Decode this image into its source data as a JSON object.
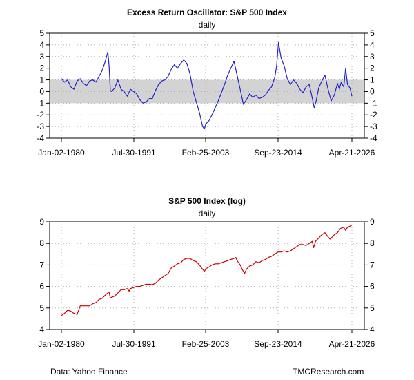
{
  "chart_data": [
    {
      "type": "line",
      "title": "Excess Return Oscillator: S&P 500 Index",
      "subtitle": "daily",
      "series_color": "#2222cc",
      "band": [
        -1,
        1
      ],
      "band_color": "#d3d3d3",
      "ylim": [
        -4,
        5
      ],
      "yticks": [
        "-4",
        "-3",
        "-2",
        "-1",
        "0",
        "1",
        "2",
        "3",
        "4",
        "5"
      ],
      "xtick_labels": [
        "Jan-02-1980",
        "Jul-30-1991",
        "Feb-25-2003",
        "Sep-23-2014",
        "Apr-21-2026"
      ],
      "xlim": [
        1980.0,
        2026.3
      ],
      "x": [
        1980.0,
        1980.5,
        1981.0,
        1981.5,
        1982.0,
        1982.5,
        1983.0,
        1983.5,
        1984.0,
        1984.5,
        1985.0,
        1985.5,
        1986.0,
        1986.5,
        1987.0,
        1987.4,
        1987.6,
        1987.8,
        1988.0,
        1988.5,
        1989.0,
        1989.5,
        1990.0,
        1990.5,
        1991.0,
        1991.5,
        1992.0,
        1992.5,
        1993.0,
        1993.5,
        1994.0,
        1994.5,
        1995.0,
        1995.5,
        1996.0,
        1996.5,
        1997.0,
        1997.5,
        1998.0,
        1998.5,
        1999.0,
        1999.5,
        2000.0,
        2000.5,
        2001.0,
        2001.5,
        2002.0,
        2002.5,
        2002.8,
        2003.0,
        2003.5,
        2004.0,
        2004.5,
        2005.0,
        2005.5,
        2006.0,
        2006.5,
        2007.0,
        2007.5,
        2008.0,
        2008.5,
        2009.0,
        2009.5,
        2010.0,
        2010.5,
        2011.0,
        2011.5,
        2012.0,
        2012.5,
        2013.0,
        2013.5,
        2014.0,
        2014.3,
        2014.6,
        2015.0,
        2015.5,
        2016.0,
        2016.5,
        2017.0,
        2017.5,
        2018.0,
        2018.5,
        2019.0,
        2019.5,
        2020.0,
        2020.3,
        2020.6,
        2021.0,
        2021.5,
        2022.0,
        2022.5,
        2023.0,
        2023.5,
        2024.0,
        2024.3,
        2024.6,
        2025.0,
        2025.3,
        2025.6,
        2026.0,
        2026.3
      ],
      "y": [
        1.1,
        0.8,
        1.0,
        0.4,
        0.2,
        0.9,
        1.1,
        0.7,
        0.5,
        0.9,
        1.0,
        0.8,
        1.3,
        1.8,
        2.6,
        3.4,
        2.2,
        0.1,
        0.0,
        0.3,
        1.0,
        0.2,
        0.0,
        -0.4,
        0.2,
        0.0,
        -0.2,
        -0.7,
        -1.0,
        -0.9,
        -0.6,
        -0.6,
        0.1,
        0.6,
        0.9,
        1.0,
        1.3,
        1.9,
        2.3,
        2.0,
        2.4,
        2.7,
        2.4,
        1.5,
        0.0,
        -0.9,
        -1.8,
        -3.0,
        -3.2,
        -2.8,
        -2.5,
        -2.0,
        -1.4,
        -0.8,
        -0.1,
        0.6,
        1.4,
        2.0,
        2.6,
        1.4,
        0.2,
        -1.1,
        -0.7,
        -0.2,
        -0.5,
        -0.3,
        -0.6,
        -0.5,
        -0.3,
        0.1,
        0.4,
        1.2,
        2.2,
        4.2,
        2.9,
        2.2,
        1.1,
        0.6,
        1.0,
        0.7,
        0.2,
        -0.1,
        0.4,
        0.6,
        -0.6,
        -1.4,
        -0.8,
        0.3,
        0.9,
        1.4,
        0.2,
        -0.8,
        -0.3,
        0.7,
        0.2,
        0.8,
        0.4,
        2.0,
        0.6,
        0.3,
        -0.4
      ]
    },
    {
      "type": "line",
      "title": "S&P 500 Index (log)",
      "subtitle": "daily",
      "series_color": "#cc0000",
      "ylim": [
        4,
        9
      ],
      "yticks": [
        "4",
        "5",
        "6",
        "7",
        "8",
        "9"
      ],
      "xtick_labels": [
        "Jan-02-1980",
        "Jul-30-1991",
        "Feb-25-2003",
        "Sep-23-2014",
        "Apr-21-2026"
      ],
      "xlim": [
        1980.0,
        2026.3
      ],
      "x": [
        1980.0,
        1980.5,
        1981.0,
        1981.5,
        1982.0,
        1982.5,
        1983.0,
        1983.5,
        1984.0,
        1984.5,
        1985.0,
        1985.5,
        1986.0,
        1986.5,
        1987.0,
        1987.6,
        1987.8,
        1988.0,
        1988.5,
        1989.0,
        1989.5,
        1990.0,
        1990.5,
        1990.8,
        1991.0,
        1991.5,
        1992.0,
        1992.5,
        1993.0,
        1993.5,
        1994.0,
        1994.5,
        1995.0,
        1995.5,
        1996.0,
        1996.5,
        1997.0,
        1997.5,
        1998.0,
        1998.5,
        1999.0,
        1999.5,
        2000.0,
        2000.5,
        2001.0,
        2001.5,
        2002.0,
        2002.5,
        2002.8,
        2003.0,
        2003.5,
        2004.0,
        2004.5,
        2005.0,
        2005.5,
        2006.0,
        2006.5,
        2007.0,
        2007.5,
        2007.8,
        2008.0,
        2008.5,
        2008.8,
        2009.2,
        2009.5,
        2010.0,
        2010.5,
        2011.0,
        2011.5,
        2012.0,
        2012.5,
        2013.0,
        2013.5,
        2014.0,
        2014.5,
        2015.0,
        2015.5,
        2016.0,
        2016.5,
        2017.0,
        2017.5,
        2018.0,
        2018.5,
        2019.0,
        2019.5,
        2020.0,
        2020.2,
        2020.5,
        2021.0,
        2021.5,
        2022.0,
        2022.5,
        2022.8,
        2023.0,
        2023.5,
        2024.0,
        2024.5,
        2025.0,
        2025.3,
        2025.6,
        2026.0,
        2026.3
      ],
      "y": [
        4.65,
        4.75,
        4.9,
        4.85,
        4.75,
        4.7,
        5.1,
        5.1,
        5.1,
        5.1,
        5.2,
        5.25,
        5.4,
        5.45,
        5.6,
        5.75,
        5.45,
        5.5,
        5.55,
        5.7,
        5.85,
        5.85,
        5.9,
        5.78,
        5.9,
        5.95,
        6.0,
        6.0,
        6.05,
        6.1,
        6.1,
        6.08,
        6.15,
        6.3,
        6.4,
        6.5,
        6.6,
        6.85,
        6.95,
        7.05,
        7.1,
        7.25,
        7.3,
        7.3,
        7.2,
        7.15,
        7.0,
        6.8,
        6.7,
        6.82,
        6.9,
        7.0,
        7.05,
        7.05,
        7.1,
        7.15,
        7.2,
        7.25,
        7.3,
        7.35,
        7.2,
        7.0,
        6.8,
        6.6,
        6.8,
        6.95,
        7.0,
        7.15,
        7.1,
        7.2,
        7.25,
        7.35,
        7.4,
        7.5,
        7.6,
        7.6,
        7.65,
        7.6,
        7.65,
        7.75,
        7.85,
        7.95,
        7.95,
        7.9,
        8.0,
        8.1,
        7.8,
        8.1,
        8.25,
        8.4,
        8.5,
        8.3,
        8.2,
        8.25,
        8.4,
        8.5,
        8.7,
        8.75,
        8.6,
        8.75,
        8.8,
        8.85
      ]
    }
  ],
  "footer": {
    "source": "Data: Yahoo Finance",
    "credit": "TMCResearch.com"
  }
}
